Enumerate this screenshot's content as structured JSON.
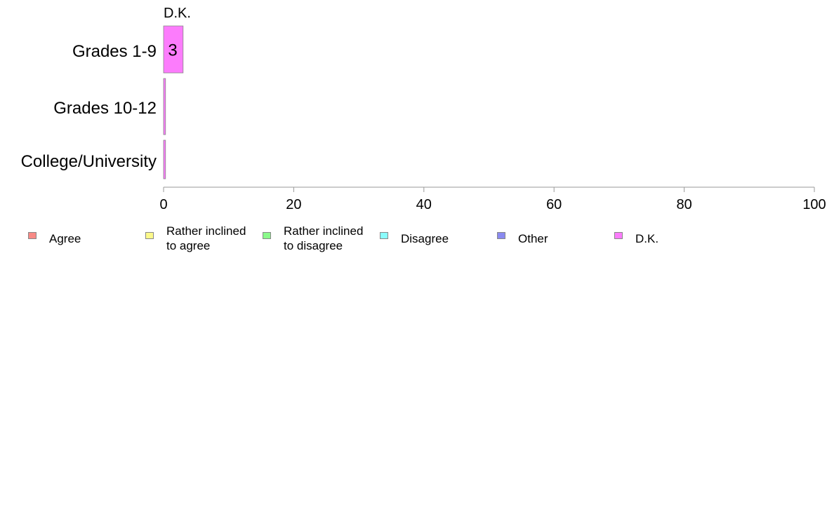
{
  "chart_data": {
    "type": "bar",
    "orientation": "horizontal",
    "stacked": true,
    "categories": [
      "Grades 1-9",
      "Grades 10-12",
      "College/University"
    ],
    "series": [
      {
        "name": "Agree",
        "color": "#f88a86",
        "values": [
          0,
          0,
          0
        ]
      },
      {
        "name": "Rather inclined to agree",
        "color": "#fcf98a",
        "values": [
          0,
          0,
          0
        ]
      },
      {
        "name": "Rather inclined to disagree",
        "color": "#8af98a",
        "values": [
          0,
          0,
          0
        ]
      },
      {
        "name": "Disagree",
        "color": "#8afcfc",
        "values": [
          0,
          0,
          0
        ]
      },
      {
        "name": "Other",
        "color": "#8a8af0",
        "values": [
          0,
          0,
          0
        ]
      },
      {
        "name": "D.K.",
        "color": "#fc7cfc",
        "values": [
          3,
          0.3,
          0.3
        ]
      }
    ],
    "data_labels": [
      "3",
      "",
      ""
    ],
    "column_header": "D.K.",
    "x_ticks": [
      "0",
      "20",
      "40",
      "60",
      "80",
      "100"
    ],
    "xlim": [
      0,
      100
    ],
    "grid": false,
    "legend_position": "bottom"
  },
  "legend": [
    {
      "label_line1": "Agree",
      "label_line2": "",
      "color": "#f88a86"
    },
    {
      "label_line1": "Rather inclined",
      "label_line2": "to agree",
      "color": "#fcf98a"
    },
    {
      "label_line1": "Rather inclined",
      "label_line2": "to disagree",
      "color": "#8af98a"
    },
    {
      "label_line1": "Disagree",
      "label_line2": "",
      "color": "#8afcfc"
    },
    {
      "label_line1": "Other",
      "label_line2": "",
      "color": "#8a8af0"
    },
    {
      "label_line1": "D.K.",
      "label_line2": "",
      "color": "#fc7cfc"
    }
  ]
}
